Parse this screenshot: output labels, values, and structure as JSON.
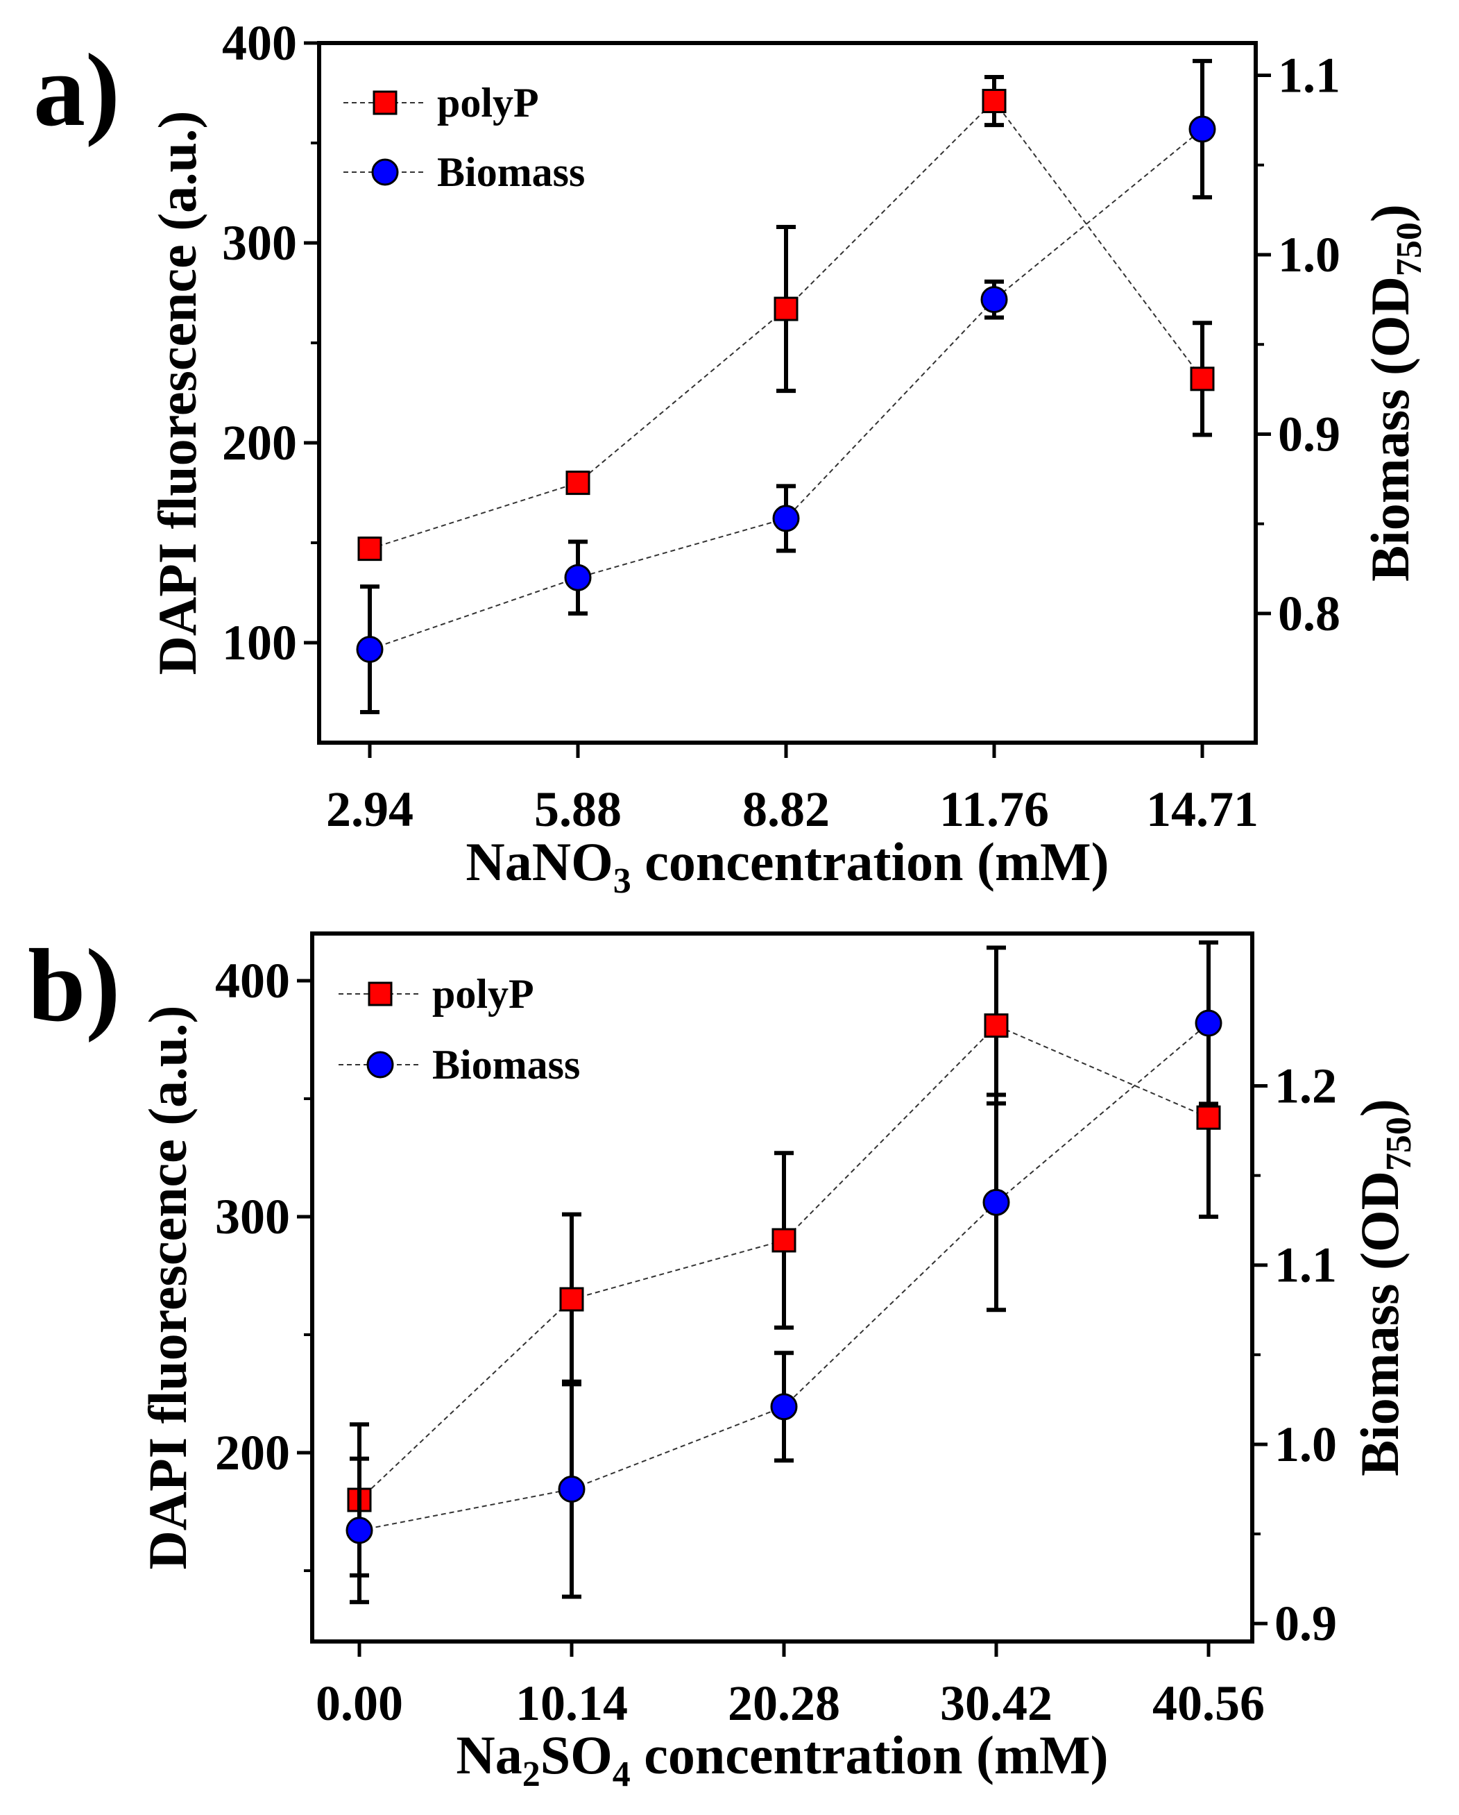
{
  "chart_data": [
    {
      "panel": "a)",
      "type": "scatter",
      "xlabel": "NaNO3 concentration (mM)",
      "xlabel_parts": {
        "pre": "NaNO",
        "sub": "3",
        "post": " concentration (mM)"
      },
      "ylabel": "DAPI fluorescence (a.u.)",
      "y2label": "Biomass (OD750)",
      "y2label_parts": {
        "pre": "Biomass (OD",
        "sub": "750",
        "post": ")"
      },
      "categories": [
        "2.94",
        "5.88",
        "8.82",
        "11.76",
        "14.71"
      ],
      "ylim": [
        50,
        400
      ],
      "y_ticks": [
        "100",
        "200",
        "300",
        "400"
      ],
      "y_tick_values": [
        100,
        200,
        300,
        400
      ],
      "y_minor_ticks": [
        150,
        250,
        350
      ],
      "y2lim": [
        0.728,
        1.118
      ],
      "y2_ticks": [
        "0.8",
        "0.9",
        "1.0",
        "1.1"
      ],
      "y2_tick_values": [
        0.8,
        0.9,
        1.0,
        1.1
      ],
      "y2_minor_ticks": [
        0.85,
        0.95,
        1.05
      ],
      "grid": false,
      "legend_position": "top-left",
      "series": [
        {
          "name": "polyP",
          "axis": "left",
          "marker": "square",
          "color": "#ff0000",
          "values": [
            147,
            180,
            267,
            371,
            232
          ],
          "errors": [
            5,
            5,
            41,
            12,
            28
          ]
        },
        {
          "name": "Biomass",
          "axis": "right",
          "marker": "circle",
          "color": "#0000ff",
          "values": [
            0.78,
            0.82,
            0.853,
            0.975,
            1.07
          ],
          "errors": [
            0.035,
            0.02,
            0.018,
            0.01,
            0.038
          ]
        }
      ]
    },
    {
      "panel": "b)",
      "type": "scatter",
      "xlabel": "Na2SO4 concentration (mM)",
      "xlabel_parts": {
        "pre": "Na",
        "sub": "2",
        "mid": "SO",
        "sub2": "4",
        "post": " concentration (mM)"
      },
      "ylabel": "DAPI fluorescence (a.u.)",
      "y2label": "Biomass (OD750)",
      "y2label_parts": {
        "pre": "Biomass (OD",
        "sub": "750",
        "post": ")"
      },
      "categories": [
        "0.00",
        "10.14",
        "20.28",
        "30.42",
        "40.56"
      ],
      "ylim": [
        120,
        420
      ],
      "y_ticks": [
        "200",
        "300",
        "400"
      ],
      "y_tick_values": [
        200,
        300,
        400
      ],
      "y_minor_ticks": [
        150,
        250,
        350
      ],
      "y2lim": [
        0.89,
        1.285
      ],
      "y2_ticks": [
        "0.9",
        "1.0",
        "1.1",
        "1.2"
      ],
      "y2_tick_values": [
        0.9,
        1.0,
        1.1,
        1.2
      ],
      "y2_minor_ticks": [
        0.95,
        1.05,
        1.15
      ],
      "grid": false,
      "legend_position": "top-left",
      "series": [
        {
          "name": "polyP",
          "axis": "left",
          "marker": "square",
          "color": "#ff0000",
          "values": [
            180,
            265,
            290,
            381,
            342
          ],
          "errors": [
            32,
            36,
            37,
            33,
            42
          ]
        },
        {
          "name": "Biomass",
          "axis": "right",
          "marker": "circle",
          "color": "#0000ff",
          "values": [
            0.952,
            0.975,
            1.021,
            1.135,
            1.235
          ],
          "errors": [
            0.04,
            0.06,
            0.03,
            0.06,
            0.045
          ]
        }
      ]
    }
  ]
}
